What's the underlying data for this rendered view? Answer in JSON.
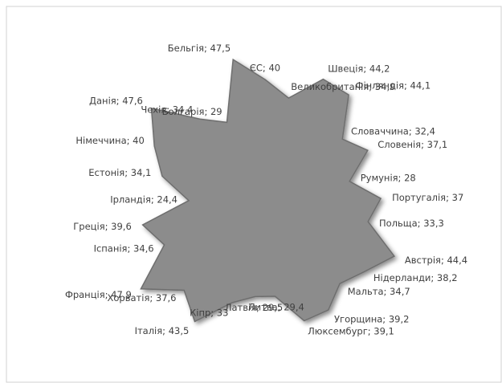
{
  "chart_data": {
    "type": "radar",
    "value_labels": [
      "ЄС; 40",
      "Бельгія; 47,5",
      "Болгарія; 29",
      "Чехія; 34,4",
      "Данія; 47,6",
      "Німеччина; 40",
      "Естонія; 34,1",
      "Ірландія; 24,4",
      "Греція; 39,6",
      "Іспанія; 34,6",
      "Франція; 47,9",
      "Хорватія; 37,6",
      "Італія; 43,5",
      "Кіпр; 33",
      "Латвія; 29,5",
      "Литва; 29,4",
      "Люксембург; 39,1",
      "Угорщина; 39,2",
      "Мальта; 34,7",
      "Нідерланди; 38,2",
      "Австрія; 44,4",
      "Польща; 33,3",
      "Португалія; 37",
      "Румунія; 28",
      "Словенія; 37,1",
      "Словаччина; 32,4",
      "Фінляндія; 44,1",
      "Швеція; 44,2",
      "Великобританія; 34,9"
    ],
    "values": [
      40,
      47.5,
      29,
      34.4,
      47.6,
      40,
      34.1,
      24.4,
      39.6,
      34.6,
      47.9,
      37.6,
      43.5,
      33,
      29.5,
      29.4,
      39.1,
      39.2,
      34.7,
      38.2,
      44.4,
      33.3,
      37,
      28,
      37.1,
      32.4,
      44.1,
      44.2,
      34.9
    ],
    "rlim": [
      0,
      50
    ],
    "color": "#8c8c8c"
  }
}
